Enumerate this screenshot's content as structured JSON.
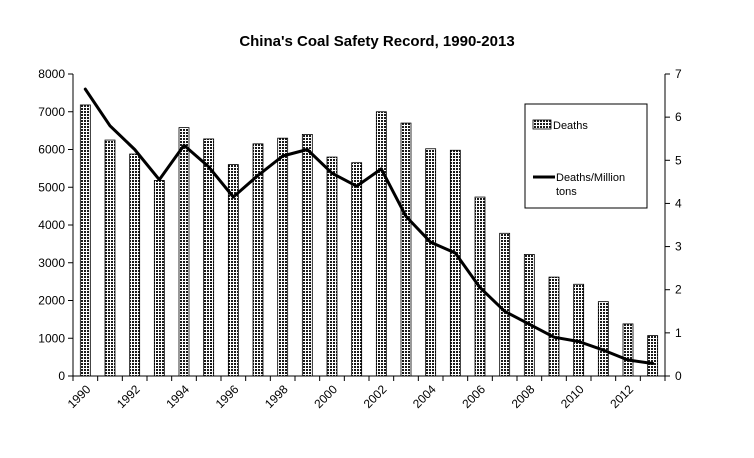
{
  "chart_data": {
    "type": "bar",
    "title": "China's Coal Safety Record, 1990-2013",
    "xlabel": "",
    "ylabel_left": "",
    "ylabel_right": "",
    "x": [
      1990,
      1991,
      1992,
      1993,
      1994,
      1995,
      1996,
      1997,
      1998,
      1999,
      2000,
      2001,
      2002,
      2003,
      2004,
      2005,
      2006,
      2007,
      2008,
      2009,
      2010,
      2011,
      2012,
      2013
    ],
    "x_tick_labels": [
      "1990",
      "1992",
      "1994",
      "1996",
      "1998",
      "2000",
      "2002",
      "2004",
      "2006",
      "2008",
      "2010",
      "2012"
    ],
    "ylim_left": [
      0,
      8000
    ],
    "y_ticks_left": [
      "0",
      "1000",
      "2000",
      "3000",
      "4000",
      "5000",
      "6000",
      "7000",
      "8000"
    ],
    "ylim_right": [
      0,
      7
    ],
    "y_ticks_right": [
      "0",
      "1",
      "2",
      "3",
      "4",
      "5",
      "6",
      "7"
    ],
    "series": [
      {
        "name": "Deaths",
        "type": "bar",
        "axis": "left",
        "pattern": "dotted",
        "values": [
          7180,
          6250,
          5880,
          5180,
          6580,
          6280,
          5600,
          6150,
          6300,
          6400,
          5800,
          5650,
          7000,
          6700,
          6020,
          5980,
          4740,
          3780,
          3220,
          2620,
          2430,
          1970,
          1380,
          1070
        ]
      },
      {
        "name": "Deaths/Million tons",
        "legend_lines": [
          "Deaths/Million",
          "tons"
        ],
        "type": "line",
        "axis": "right",
        "color": "#000000",
        "values": [
          6.65,
          5.8,
          5.25,
          4.55,
          5.35,
          4.85,
          4.15,
          4.65,
          5.1,
          5.25,
          4.7,
          4.4,
          4.8,
          3.7,
          3.1,
          2.85,
          2.05,
          1.5,
          1.2,
          0.9,
          0.8,
          0.6,
          0.37,
          0.29
        ]
      }
    ],
    "legend_position": "top-right",
    "grid": false
  }
}
